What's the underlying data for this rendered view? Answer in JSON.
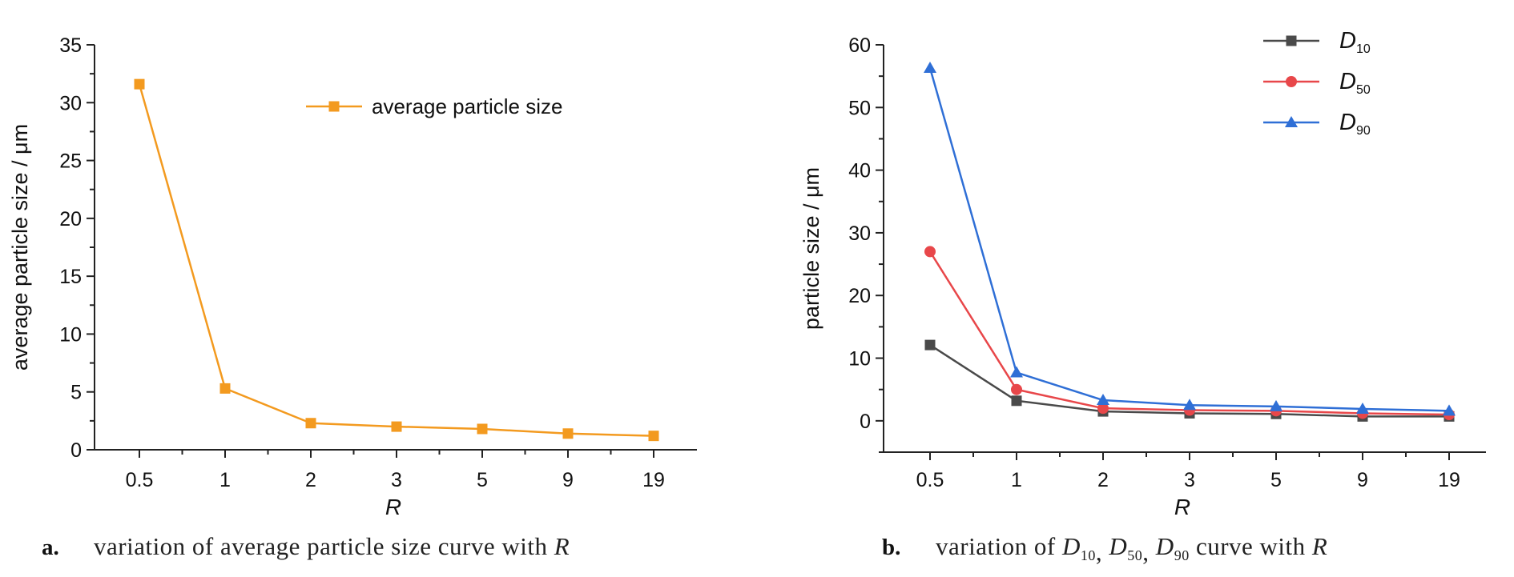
{
  "chart_data": [
    {
      "type": "line",
      "categories": [
        "0.5",
        "1",
        "2",
        "3",
        "5",
        "9",
        "19"
      ],
      "series": [
        {
          "name": "average particle size",
          "values": [
            31.6,
            5.3,
            2.3,
            2.0,
            1.8,
            1.4,
            1.2
          ],
          "color": "#f39a1f",
          "marker": "square"
        }
      ],
      "xlabel": "R",
      "ylabel": "average particle size / μm",
      "ylim": [
        0,
        35
      ],
      "yticks": [
        0,
        5,
        10,
        15,
        20,
        25,
        30,
        35
      ],
      "grid": false,
      "legend_position": "top-right",
      "caption": {
        "letter": "a.",
        "text": "variation of average particle size curve with ",
        "var": "R"
      }
    },
    {
      "type": "line",
      "categories": [
        "0.5",
        "1",
        "2",
        "3",
        "5",
        "9",
        "19"
      ],
      "series": [
        {
          "name": "D10",
          "symbol": "D",
          "subscript": "10",
          "values": [
            12.1,
            3.2,
            1.5,
            1.2,
            1.1,
            0.7,
            0.7
          ],
          "color": "#4a4a4a",
          "marker": "square"
        },
        {
          "name": "D50",
          "symbol": "D",
          "subscript": "50",
          "values": [
            27.0,
            5.0,
            2.0,
            1.7,
            1.6,
            1.2,
            1.0
          ],
          "color": "#e8474a",
          "marker": "circle"
        },
        {
          "name": "D90",
          "symbol": "D",
          "subscript": "90",
          "values": [
            56.3,
            7.7,
            3.3,
            2.5,
            2.3,
            1.9,
            1.6
          ],
          "color": "#2f6fd6",
          "marker": "triangle"
        }
      ],
      "xlabel": "R",
      "ylabel": "particle size / μm",
      "ylim": [
        -5,
        60
      ],
      "yticks": [
        0,
        10,
        20,
        30,
        40,
        50,
        60
      ],
      "grid": false,
      "legend_position": "top-right",
      "caption": {
        "letter": "b.",
        "text_prefix": "variation of ",
        "symbol": "D",
        "subs": [
          "10",
          "50",
          "90"
        ],
        "separator": ",",
        "text_suffix": " curve with ",
        "var": "R"
      }
    }
  ]
}
